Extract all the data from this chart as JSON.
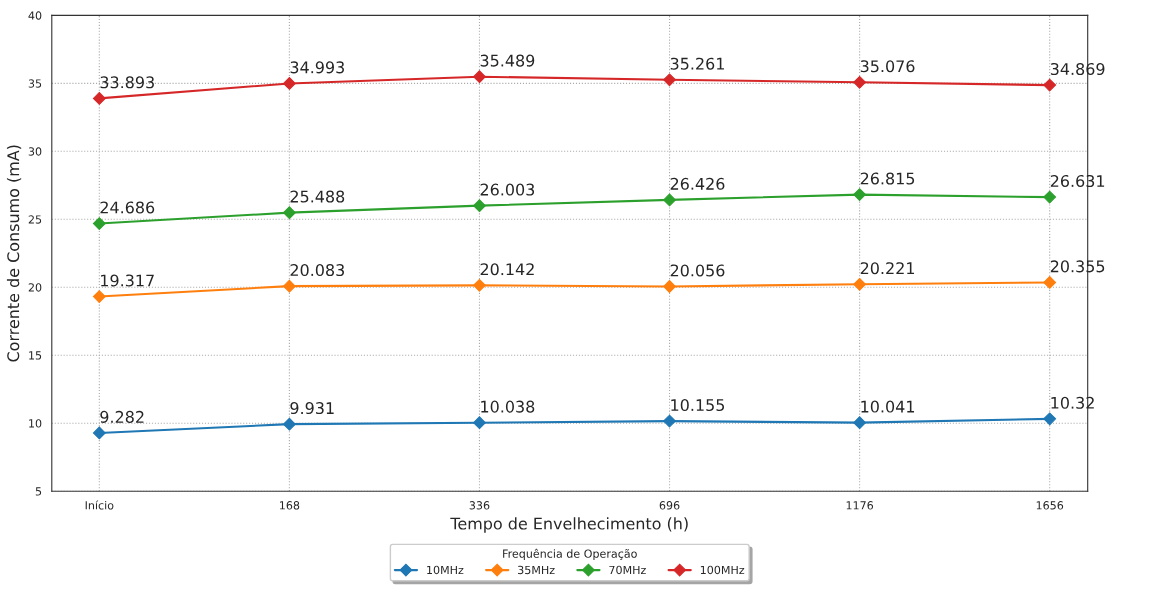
{
  "chart_data": {
    "type": "line",
    "xlabel": "Tempo de Envelhecimento (h)",
    "ylabel": "Corrente de Consumo (mA)",
    "categories": [
      "Início",
      "168",
      "336",
      "696",
      "1176",
      "1656"
    ],
    "series": [
      {
        "name": "10MHz",
        "color": "#1f77b4",
        "values": [
          9.282,
          9.931,
          10.038,
          10.155,
          10.041,
          10.32
        ]
      },
      {
        "name": "35MHz",
        "color": "#ff7f0e",
        "values": [
          19.317,
          20.083,
          20.142,
          20.056,
          20.221,
          20.355
        ]
      },
      {
        "name": "70MHz",
        "color": "#2ca02c",
        "values": [
          24.686,
          25.488,
          26.003,
          26.426,
          26.815,
          26.631
        ]
      },
      {
        "name": "100MHz",
        "color": "#d62728",
        "values": [
          33.893,
          34.993,
          35.489,
          35.261,
          35.076,
          34.869
        ]
      }
    ],
    "ylim": [
      5,
      40
    ],
    "yticks": [
      5,
      10,
      15,
      20,
      25,
      30,
      35,
      40
    ],
    "legend_title": "Frequência de Operação",
    "legend": "bottom",
    "grid": true,
    "marker": "diamond",
    "line_style": "solid",
    "data_labels": true
  }
}
